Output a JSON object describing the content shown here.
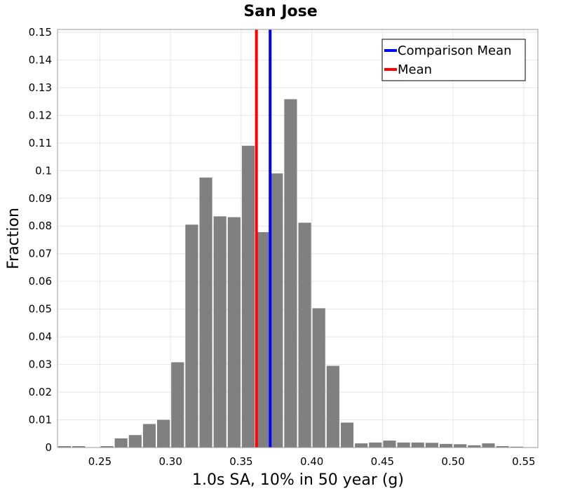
{
  "chart_data": {
    "type": "bar",
    "title": "San Jose",
    "xlabel": "1.0s SA, 10% in 50 year (g)",
    "ylabel": "Fraction",
    "xlim": [
      0.22,
      0.56
    ],
    "ylim": [
      0,
      0.151
    ],
    "bin_width": 0.01,
    "x_ticks": [
      "0.25",
      "0.30",
      "0.35",
      "0.40",
      "0.45",
      "0.50",
      "0.55"
    ],
    "y_ticks": [
      "0",
      "0.01",
      "0.02",
      "0.03",
      "0.04",
      "0.05",
      "0.06",
      "0.07",
      "0.08",
      "0.09",
      "0.1",
      "0.11",
      "0.12",
      "0.13",
      "0.14",
      "0.15"
    ],
    "grid": true,
    "legend_position": "top-right",
    "bar_color": "#808080",
    "bins": [
      0.225,
      0.235,
      0.245,
      0.255,
      0.265,
      0.275,
      0.285,
      0.295,
      0.305,
      0.315,
      0.325,
      0.335,
      0.345,
      0.355,
      0.365,
      0.375,
      0.385,
      0.395,
      0.405,
      0.415,
      0.425,
      0.435,
      0.445,
      0.455,
      0.465,
      0.475,
      0.485,
      0.495,
      0.505,
      0.515,
      0.525,
      0.535,
      0.545,
      0.555
    ],
    "values": [
      0.0005,
      0.0005,
      0.0001,
      0.0005,
      0.0033,
      0.0045,
      0.0085,
      0.01,
      0.0308,
      0.0805,
      0.0975,
      0.0835,
      0.0832,
      0.109,
      0.0778,
      0.099,
      0.1258,
      0.0812,
      0.0503,
      0.0295,
      0.009,
      0.0015,
      0.0018,
      0.0025,
      0.0018,
      0.0018,
      0.0017,
      0.0013,
      0.0012,
      0.0008,
      0.0015,
      0.0005,
      0.0003,
      0.0001
    ],
    "series": [
      {
        "name": "Comparison Mean",
        "type": "vline",
        "x": 0.3705,
        "color": "#0000ff"
      },
      {
        "name": "Mean",
        "type": "vline",
        "x": 0.3608,
        "color": "#ff0000"
      }
    ]
  }
}
